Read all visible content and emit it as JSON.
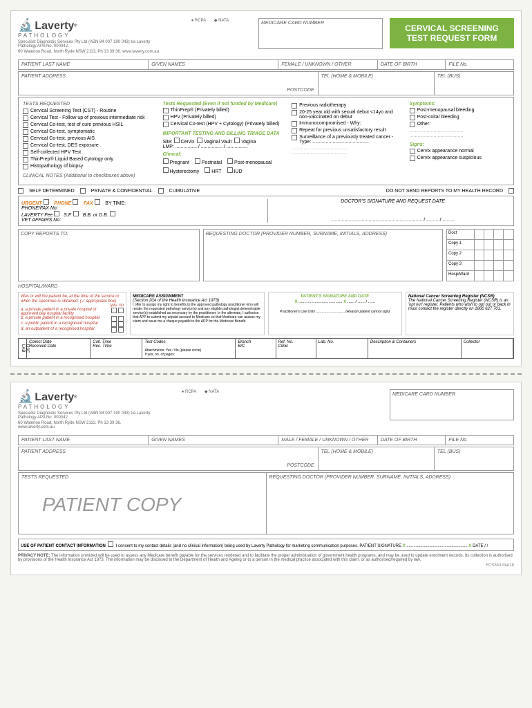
{
  "brand": "Laverty",
  "brand_sub": "PATHOLOGY",
  "badge1": "RCPA",
  "badge2": "NATA",
  "spec_line1": "Specialist Diagnostic Services Pty Ltd (ABN 84 007 190 043) t/a Laverty Pathology APA No. 000042.",
  "spec_line2": "60 Waterloo Road, North Ryde NSW 2113, Ph 13 39 36. www.laverty.com.au",
  "medicare_label": "MEDICARE CARD NUMBER",
  "form_title1": "CERVICAL SCREENING",
  "form_title2": "TEST REQUEST FORM",
  "fields": {
    "last_name": "PATIENT LAST NAME",
    "given_names": "GIVEN NAMES",
    "gender": "FEMALE / UNKNOWN / OTHER",
    "gender2": "MALE / FEMALE / UNKNOWN / OTHER",
    "dob": "DATE OF BIRTH",
    "file_no": "FILE No.",
    "address": "PATIENT ADDRESS",
    "postcode": "POSTCODE",
    "tel_home": "TEL (HOME & MOBILE)",
    "tel_bus": "TEL (BUS)",
    "tests_requested": "TESTS REQUESTED"
  },
  "tests": [
    "Cervical Screening Test (CST) - Routine",
    "Cervical Test - Follow up of previous intermediate risk",
    "Cervical Co-test, test of cure previous HSIL",
    "Cervical Co-test, symptomatic",
    "Cervical Co-test, previous AIS",
    "Cervical Co-test, DES exposure",
    "Self-collected HPV Test",
    "ThinPrep® Liquid Based Cytology only",
    "Histopathology of biopsy"
  ],
  "clinical_notes": "CLINICAL NOTES (Additional to checkboxes above)",
  "tests_req_title": "Tests Requested (Even if not funded by Medicare)",
  "private_tests": [
    "ThinPrep® (Privately billed)",
    "HPV (Privately billed)",
    "Cervical Co-test (HPV + Cytology) (Privately billed)"
  ],
  "important_title": "IMPORTANT TESTING AND BILLING TRIAGE DATA",
  "site_label": "Site:",
  "sites": [
    "Cervix",
    "Vaginal Vault",
    "Vagina"
  ],
  "lmp": "LMP: ................ / ................ / ................",
  "clinical_title": "Clinical:",
  "clinical_opts": [
    "Pregnant",
    "Postnatal",
    "Post-menopausal",
    "Hysterectomy",
    "HRT",
    "IUD"
  ],
  "history_opts": [
    "Previous radiotherapy",
    "20-25 year old with sexual debut <14yo and non-vaccinated on debut",
    "Immunocompromised - Why:",
    "Repeat for previous unsatisfactory result",
    "Surveillance of a previously treated cancer - Type: .........................................."
  ],
  "symptoms_title": "Symptoms:",
  "symptoms": [
    "Post-menopausal bleeding",
    "Post-coital bleeding",
    "Other:"
  ],
  "signs_title": "Signs:",
  "signs": [
    "Cervix appearance normal",
    "Cervix appearance suspicious"
  ],
  "report_opts": {
    "self": "SELF DETERMINED",
    "private": "PRIVATE & CONFIDENTIAL",
    "cumulative": "CUMULATIVE",
    "no_send": "DO NOT SEND REPORTS TO MY HEALTH RECORD"
  },
  "urgent": {
    "urgent": "URGENT",
    "phone": "PHONE",
    "fax": "FAX",
    "by_time": "BY TIME:",
    "phone_fax": "PHONE/FAX No:",
    "laverty_fee": "LAVERTY  Fee",
    "sf": "S.F.",
    "bb": "B.B. or D.B.",
    "vet": "VET AFFAIRS No:",
    "doc_sig": "DOCTOR'S SIGNATURE AND REQUEST DATE"
  },
  "copy_reports": "COPY REPORTS TO:",
  "requesting_doc": "REQUESTING DOCTOR (PROVIDER NUMBER, SURNAME, INITIALS, ADDRESS)",
  "hospital_ward": "HOSPITAL/WARD",
  "copy_labels": [
    "Doct",
    "Copy 1",
    "Copy 2",
    "Copy 3",
    "Hosp/Ward"
  ],
  "patient_q": "Was or will the patient be, at the time of the service or when the specimen is obtained: (✓ appropriate box)",
  "patient_opts": [
    "a.  a private patient in a private hospital or approved day hospital facility",
    "b.  a private patient in a recognised hospital",
    "c.  a public patient in a recognised hospital",
    "d.  an outpatient of a recognised hospital"
  ],
  "yes": "yes",
  "no": "no",
  "medicare_assign": "MEDICARE ASSIGNMENT",
  "medicare_sub": "(Section 20A of the Health Insurance Act 1973)",
  "medicare_text": "I offer to assign my right to benefits to the approved pathology practitioner who will render the requested pathology service(s) and any eligible pathologist determinable service(s) established as necessary by the practitioner. In the alternate, I authorise that APP to submit my unpaid account to Medicare so that Medicare can assess my claim and issue me a cheque payable to the APP for the Medicare Benefit.",
  "patient_sig": "PATIENT'S SIGNATURE AND DATE",
  "practitioner_use": "Practitioner's Use Only ..............................",
  "reason_cannot": "(Reason patient cannot sign)",
  "ncsr_title": "National Cancer Screening Register (NCSR)",
  "ncsr_text": "The National Cancer Screening Register (NCSR) is an 'opt out' register. Patients who wish to opt out or back in must contact the register directly on 1800 627 701.",
  "lab": {
    "collect_date": "Collect Date",
    "coll_time": "Coll. Time",
    "test_codes": "Test Codes",
    "received_date": "Received Date",
    "rec_time": "Rec. Time",
    "branch": "Branch",
    "ref_no": "Ref. No.",
    "lab_no": "Lab. No.",
    "bc": "B/C",
    "clinic": "Clinic",
    "desc": "Description & Containers",
    "collector": "Collector",
    "attach": "Attachments: Yes / No (please circle)",
    "pages": "If yes, no. of pages:",
    "lab_use": "LAB USE"
  },
  "patient_copy": "PATIENT COPY",
  "contact_info": "USE OF PATIENT CONTACT INFORMATION",
  "contact_text": "I consent to my contact details (and no clinical information) being used by Laverty Pathology for marketing communication purposes.   PATIENT SIGNATURE",
  "date_label": "DATE    /   /",
  "privacy_title": "PRIVACY NOTE:",
  "privacy_text": "The information provided will be used to assess any Medicare benefit payable for the services rendered and to facilitate the proper administration of government health programs, and may be used to update enrolment records. Its collection is authorised by provisions of the Health Insurance Act 1973. The information may be disclosed to the Department of Health and Ageing or to a person in the medical practice associated with this claim, or as authorised/required by law.",
  "form_code": "FCS544  Mar18"
}
